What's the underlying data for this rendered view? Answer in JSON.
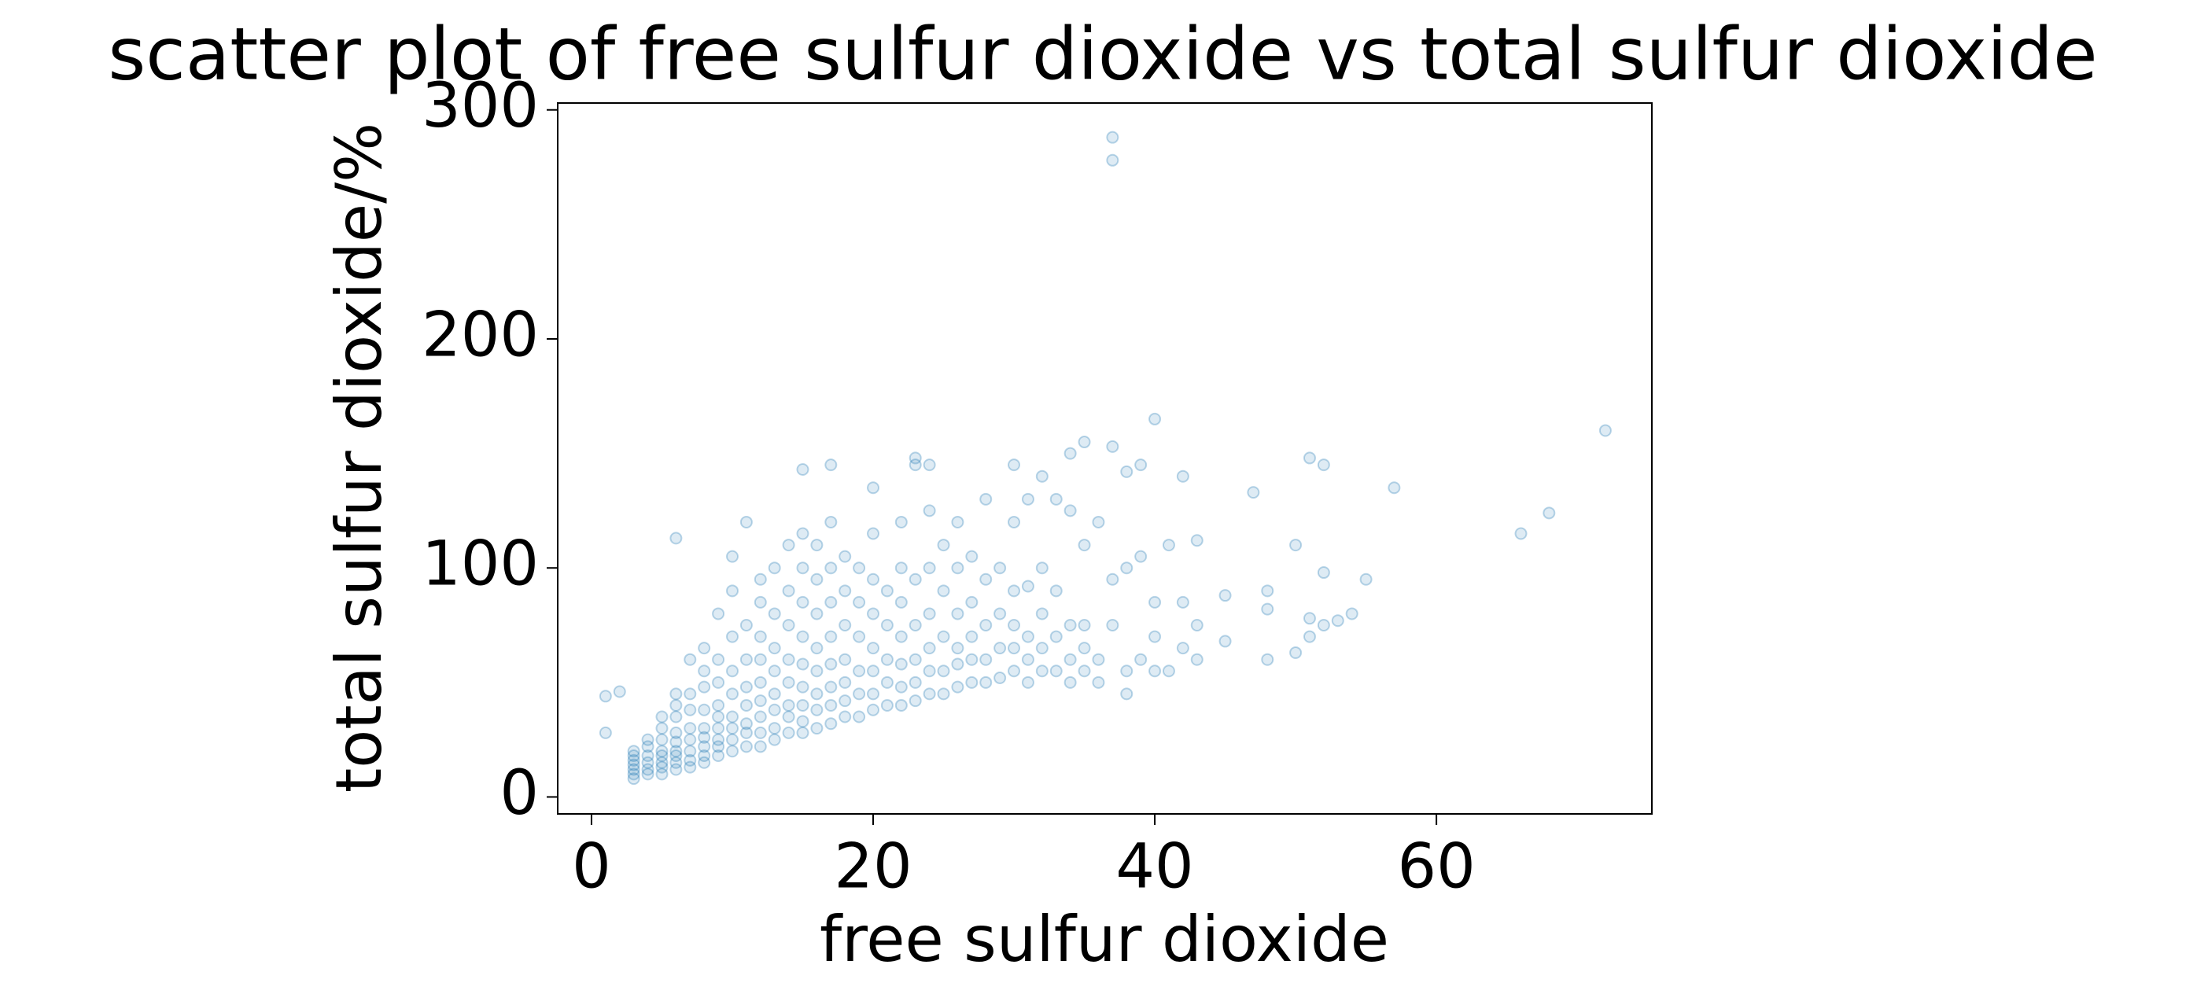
{
  "chart_data": {
    "type": "scatter",
    "title": "scatter plot of free sulfur dioxide vs total sulfur dioxide",
    "x_label": "free sulfur dioxide",
    "y_label": "total sulfur dioxide/%",
    "x": [
      1,
      1,
      2,
      3,
      3,
      3,
      3,
      3,
      3,
      3,
      4,
      4,
      4,
      4,
      4,
      4,
      5,
      5,
      5,
      5,
      5,
      5,
      5,
      5,
      6,
      6,
      6,
      6,
      6,
      6,
      6,
      6,
      6,
      6,
      7,
      7,
      7,
      7,
      7,
      7,
      7,
      7,
      8,
      8,
      8,
      8,
      8,
      8,
      8,
      8,
      8,
      9,
      9,
      9,
      9,
      9,
      9,
      9,
      9,
      9,
      10,
      10,
      10,
      10,
      10,
      10,
      10,
      10,
      10,
      11,
      11,
      11,
      11,
      11,
      11,
      11,
      11,
      12,
      12,
      12,
      12,
      12,
      12,
      12,
      12,
      12,
      13,
      13,
      13,
      13,
      13,
      13,
      13,
      13,
      14,
      14,
      14,
      14,
      14,
      14,
      14,
      14,
      15,
      15,
      15,
      15,
      15,
      15,
      15,
      15,
      15,
      15,
      16,
      16,
      16,
      16,
      16,
      16,
      16,
      16,
      17,
      17,
      17,
      17,
      17,
      17,
      17,
      17,
      17,
      18,
      18,
      18,
      18,
      18,
      18,
      18,
      19,
      19,
      19,
      19,
      19,
      19,
      20,
      20,
      20,
      20,
      20,
      20,
      20,
      20,
      21,
      21,
      21,
      21,
      21,
      22,
      22,
      22,
      22,
      22,
      22,
      22,
      23,
      23,
      23,
      23,
      23,
      23,
      23,
      24,
      24,
      24,
      24,
      24,
      24,
      24,
      25,
      25,
      25,
      25,
      25,
      26,
      26,
      26,
      26,
      26,
      26,
      27,
      27,
      27,
      27,
      27,
      28,
      28,
      28,
      28,
      28,
      29,
      29,
      29,
      29,
      30,
      30,
      30,
      30,
      30,
      30,
      31,
      31,
      31,
      31,
      31,
      32,
      32,
      32,
      32,
      32,
      33,
      33,
      33,
      33,
      34,
      34,
      34,
      34,
      34,
      35,
      35,
      35,
      35,
      35,
      36,
      36,
      36,
      37,
      37,
      37,
      37,
      37,
      38,
      38,
      38,
      38,
      39,
      39,
      39,
      40,
      40,
      40,
      40,
      41,
      41,
      42,
      42,
      42,
      43,
      43,
      43,
      45,
      45,
      47,
      48,
      48,
      48,
      50,
      50,
      51,
      51,
      51,
      52,
      52,
      52,
      53,
      54,
      55,
      57,
      66,
      68,
      72
    ],
    "series": [
      {
        "name": "total sulfur dioxide",
        "color": "#1f77b4",
        "values": [
          28,
          44,
          46,
          8,
          10,
          12,
          14,
          16,
          18,
          20,
          10,
          12,
          15,
          18,
          22,
          25,
          10,
          13,
          15,
          18,
          20,
          25,
          30,
          35,
          12,
          15,
          18,
          20,
          24,
          28,
          35,
          40,
          45,
          113,
          13,
          16,
          20,
          25,
          30,
          38,
          45,
          60,
          15,
          18,
          22,
          26,
          30,
          38,
          48,
          55,
          65,
          18,
          22,
          25,
          30,
          35,
          40,
          50,
          60,
          80,
          20,
          25,
          30,
          35,
          45,
          55,
          70,
          90,
          105,
          22,
          28,
          32,
          40,
          48,
          60,
          75,
          120,
          22,
          28,
          35,
          42,
          50,
          60,
          70,
          85,
          95,
          25,
          30,
          38,
          45,
          55,
          65,
          80,
          100,
          28,
          35,
          40,
          50,
          60,
          75,
          90,
          110,
          28,
          33,
          40,
          48,
          58,
          70,
          85,
          100,
          115,
          143,
          30,
          38,
          45,
          55,
          65,
          80,
          95,
          110,
          32,
          40,
          48,
          58,
          70,
          85,
          100,
          120,
          145,
          35,
          42,
          50,
          60,
          75,
          90,
          105,
          35,
          45,
          55,
          70,
          85,
          100,
          38,
          45,
          55,
          65,
          80,
          95,
          115,
          135,
          40,
          50,
          60,
          75,
          90,
          40,
          48,
          58,
          70,
          85,
          100,
          120,
          42,
          50,
          60,
          75,
          95,
          145,
          148,
          45,
          55,
          65,
          80,
          100,
          125,
          145,
          45,
          55,
          70,
          90,
          110,
          48,
          58,
          65,
          80,
          100,
          120,
          50,
          60,
          70,
          85,
          105,
          50,
          60,
          75,
          95,
          130,
          52,
          65,
          80,
          100,
          55,
          65,
          75,
          90,
          120,
          145,
          50,
          60,
          70,
          92,
          130,
          55,
          65,
          80,
          100,
          140,
          55,
          70,
          90,
          130,
          50,
          60,
          75,
          125,
          150,
          55,
          65,
          75,
          110,
          155,
          50,
          60,
          120,
          75,
          95,
          153,
          278,
          288,
          45,
          55,
          100,
          142,
          60,
          105,
          145,
          55,
          70,
          85,
          165,
          55,
          110,
          65,
          85,
          140,
          60,
          75,
          112,
          68,
          88,
          133,
          60,
          82,
          90,
          63,
          110,
          70,
          78,
          148,
          75,
          98,
          145,
          77,
          80,
          95,
          135,
          115,
          124,
          160
        ]
      }
    ],
    "xlim": [
      -2.4,
      75.3
    ],
    "ylim": [
      -7.4,
      303
    ],
    "xticks": [
      0,
      20,
      40,
      60
    ],
    "yticks": [
      0,
      100,
      200,
      300
    ],
    "alpha": 0.15
  }
}
